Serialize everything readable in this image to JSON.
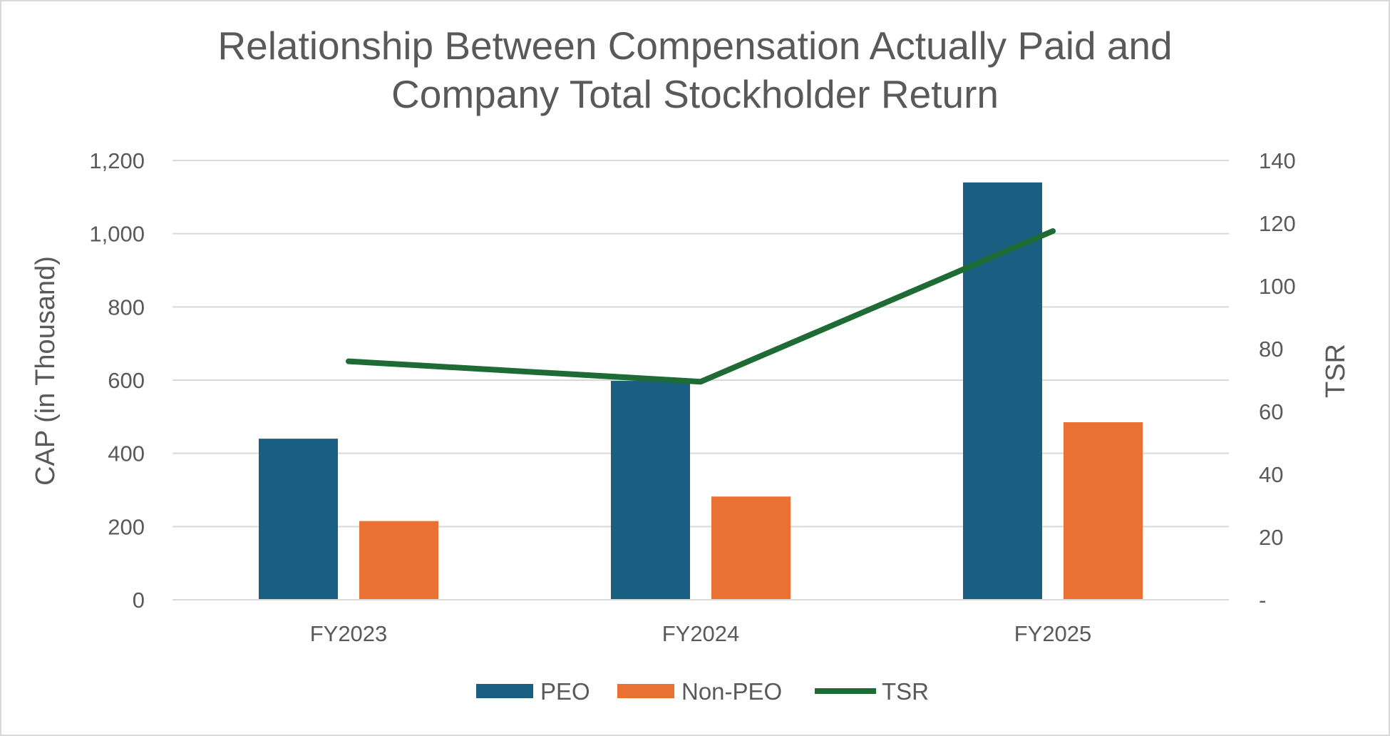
{
  "chart_data": {
    "type": "bar",
    "title_lines": [
      "Relationship Between Compensation Actually Paid and",
      "Company Total Stockholder Return"
    ],
    "categories": [
      "FY2023",
      "FY2024",
      "FY2025"
    ],
    "series": [
      {
        "name": "PEO",
        "type": "bar",
        "axis": "left",
        "color": "#1a5f82",
        "values": [
          440,
          598,
          1140
        ]
      },
      {
        "name": "Non-PEO",
        "type": "bar",
        "axis": "left",
        "color": "#e97133",
        "values": [
          215,
          282,
          485
        ]
      },
      {
        "name": "TSR",
        "type": "line",
        "axis": "right",
        "color": "#1e6b35",
        "values": [
          76,
          69.5,
          117.5
        ]
      }
    ],
    "ylabel": "CAP (in Thousand)",
    "y2label": "TSR",
    "ylim": [
      0,
      1200
    ],
    "y2lim": [
      0,
      140
    ],
    "yticks": [
      0,
      200,
      400,
      600,
      800,
      1000,
      1200
    ],
    "yticks_labels": [
      "0",
      "200",
      "400",
      "600",
      "800",
      "1,000",
      "1,200"
    ],
    "y2ticks": [
      0,
      20,
      40,
      60,
      80,
      100,
      120,
      140
    ],
    "y2ticks_labels": [
      "-",
      "20",
      "40",
      "60",
      "80",
      "100",
      "120",
      "140"
    ],
    "grid": true,
    "legend_position": "bottom"
  }
}
